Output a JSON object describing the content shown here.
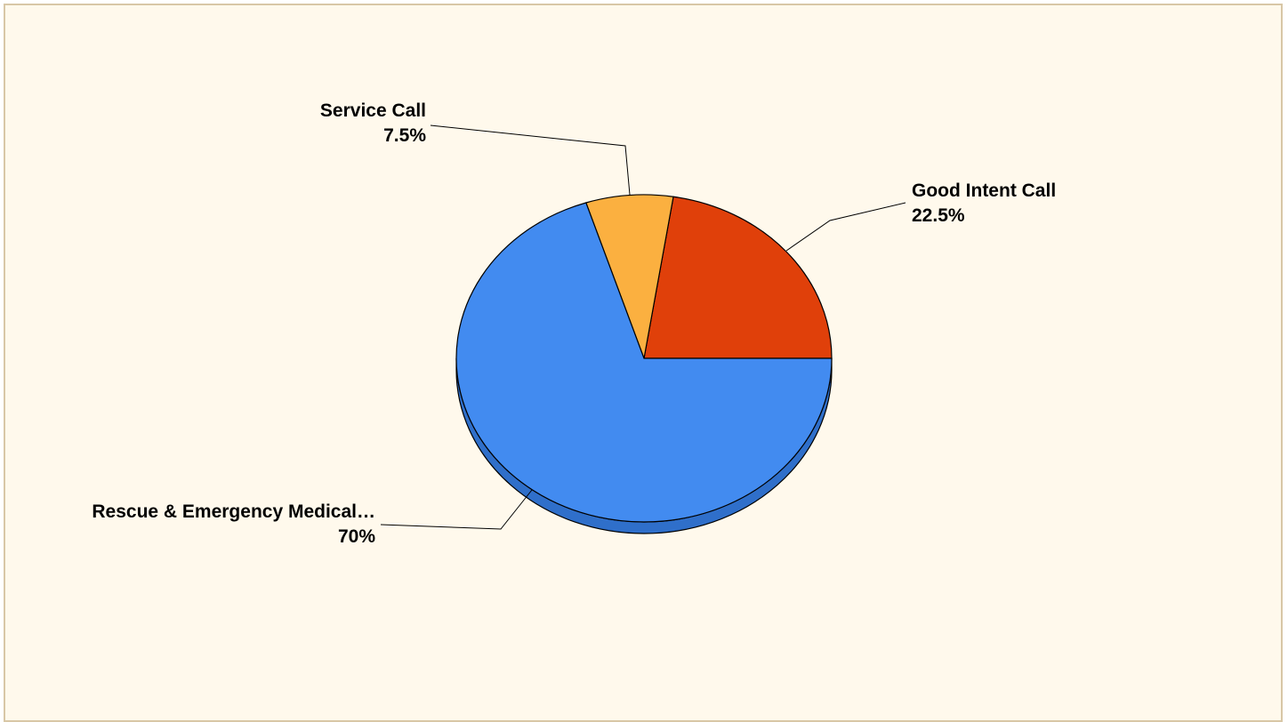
{
  "chart_data": {
    "type": "pie",
    "title": "",
    "slices": [
      {
        "key": "good-intent-call",
        "label": "Good Intent Call",
        "percent_label": "22.5%",
        "value": 22.5,
        "color": "#e0400a"
      },
      {
        "key": "service-call",
        "label": "Service Call",
        "percent_label": "7.5%",
        "value": 7.5,
        "color": "#fbb040"
      },
      {
        "key": "rescue-emergency-medical",
        "label": "Rescue & Emergency Medical…",
        "percent_label": "70%",
        "value": 70,
        "color": "#428bf0"
      }
    ],
    "style": {
      "three_d": true,
      "start_angle": "3 o'clock, counter-clockwise",
      "outline_color": "#000000",
      "background_color": "#fff9ec",
      "frame_color": "#d8c7a6"
    }
  }
}
